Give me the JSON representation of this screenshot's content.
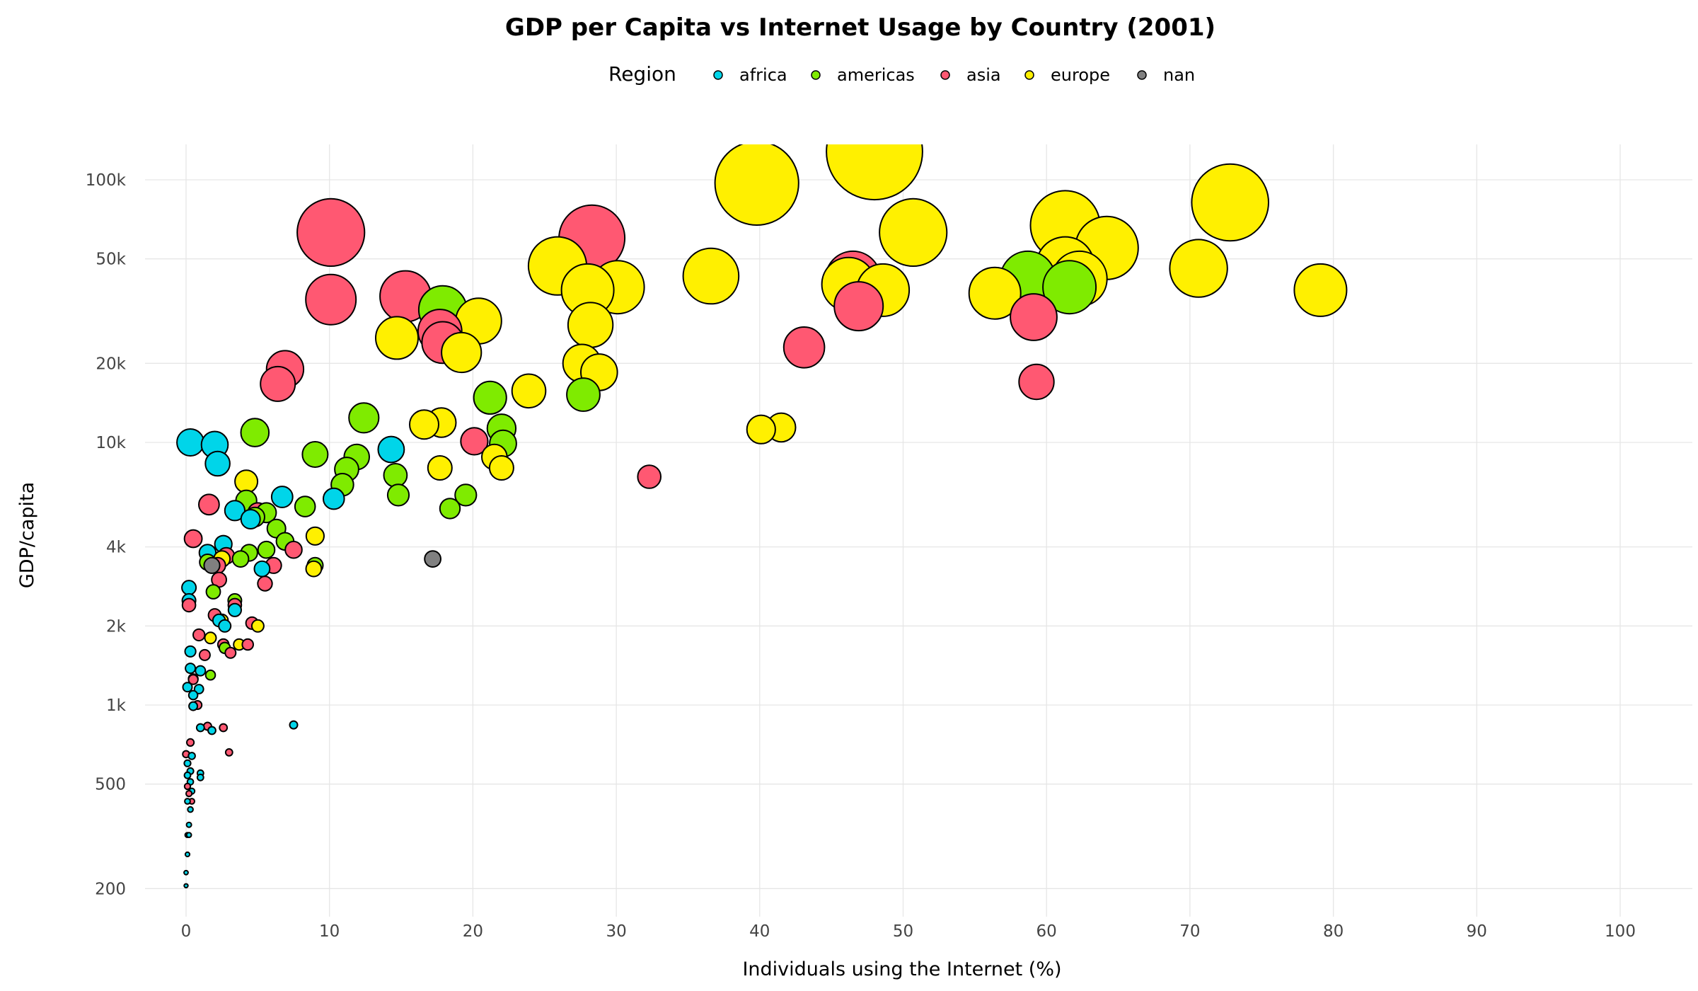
{
  "chart_data": {
    "type": "scatter",
    "title": "GDP per Capita vs Internet Usage by Country (2001)",
    "xlabel": "Individuals using the Internet (%)",
    "ylabel": "GDP/capita",
    "xlim": [
      -3,
      105
    ],
    "ylim": [
      170,
      130000
    ],
    "y_scale": "log",
    "grid": true,
    "x_ticks": [
      0,
      10,
      20,
      30,
      40,
      50,
      60,
      70,
      80,
      90,
      100
    ],
    "x_tick_labels": [
      "0",
      "10",
      "20",
      "30",
      "40",
      "50",
      "60",
      "70",
      "80",
      "90",
      "100"
    ],
    "y_ticks": [
      200,
      500,
      1000,
      2000,
      4000,
      10000,
      20000,
      50000,
      100000
    ],
    "y_tick_labels": [
      "200",
      "500",
      "1k",
      "2k",
      "4k",
      "10k",
      "20k",
      "50k",
      "100k"
    ],
    "legend": {
      "title": "Region",
      "placement": "top-center",
      "entries": [
        {
          "name": "africa",
          "color": "#00d5e9"
        },
        {
          "name": "americas",
          "color": "#7feb00"
        },
        {
          "name": "asia",
          "color": "#ff5872"
        },
        {
          "name": "europe",
          "color": "#fff000"
        },
        {
          "name": "nan",
          "color": "#808080"
        }
      ]
    },
    "size_note": "point area scales with GDP per capita",
    "series": [
      {
        "name": "europe",
        "color": "#fff000",
        "points": [
          [
            48,
            128000
          ],
          [
            39.8,
            97000
          ],
          [
            72.8,
            82000
          ],
          [
            50.7,
            63000
          ],
          [
            61.3,
            67000
          ],
          [
            64.2,
            55000
          ],
          [
            61.3,
            47000
          ],
          [
            62.3,
            42000
          ],
          [
            70.6,
            46000
          ],
          [
            79.1,
            38000
          ],
          [
            56.4,
            37000
          ],
          [
            48.6,
            38000
          ],
          [
            46.2,
            40000
          ],
          [
            36.6,
            43000
          ],
          [
            25.9,
            47000
          ],
          [
            28,
            38000
          ],
          [
            30.1,
            39000
          ],
          [
            28.2,
            28000
          ],
          [
            20.4,
            29000
          ],
          [
            19.2,
            22000
          ],
          [
            14.7,
            25000
          ],
          [
            27.6,
            20000
          ],
          [
            28.8,
            18500
          ],
          [
            23.9,
            15700
          ],
          [
            16.6,
            11700
          ],
          [
            17.8,
            11900
          ],
          [
            40.1,
            11200
          ],
          [
            41.5,
            11400
          ],
          [
            21.5,
            8800
          ],
          [
            17.7,
            8000
          ],
          [
            22,
            8000
          ],
          [
            4.2,
            7100
          ],
          [
            9,
            4400
          ],
          [
            8.9,
            3300
          ],
          [
            5,
            2000
          ],
          [
            2.5,
            3600
          ],
          [
            3.7,
            1700
          ],
          [
            1.7,
            1800
          ],
          [
            2.5,
            2100
          ]
        ]
      },
      {
        "name": "asia",
        "color": "#ff5872",
        "points": [
          [
            10.1,
            63000
          ],
          [
            28.3,
            60000
          ],
          [
            10.1,
            35000
          ],
          [
            15.3,
            36000
          ],
          [
            17.9,
            24000
          ],
          [
            17.7,
            26500
          ],
          [
            46.9,
            33000
          ],
          [
            46.5,
            42000
          ],
          [
            59.1,
            30000
          ],
          [
            43.1,
            23000
          ],
          [
            59.3,
            17000
          ],
          [
            6.9,
            19000
          ],
          [
            6.4,
            16700
          ],
          [
            20.1,
            10100
          ],
          [
            32.3,
            7400
          ],
          [
            1.6,
            5800
          ],
          [
            5,
            5400
          ],
          [
            0.5,
            4300
          ],
          [
            7.5,
            3900
          ],
          [
            6.1,
            3400
          ],
          [
            2.2,
            3400
          ],
          [
            2.8,
            3700
          ],
          [
            3.4,
            2400
          ],
          [
            5.5,
            2900
          ],
          [
            2.3,
            3000
          ],
          [
            4.6,
            2050
          ],
          [
            2,
            2200
          ],
          [
            0.9,
            1850
          ],
          [
            4.3,
            1700
          ],
          [
            2.6,
            1700
          ],
          [
            1.3,
            1550
          ],
          [
            3.1,
            1580
          ],
          [
            0.5,
            1250
          ],
          [
            0.8,
            1000
          ],
          [
            1.5,
            830
          ],
          [
            2.6,
            820
          ],
          [
            3,
            660
          ],
          [
            0.3,
            720
          ],
          [
            0,
            650
          ],
          [
            0.2,
            460
          ],
          [
            0.1,
            490
          ],
          [
            0.4,
            430
          ],
          [
            0.2,
            2400
          ]
        ]
      },
      {
        "name": "americas",
        "color": "#7feb00",
        "points": [
          [
            17.9,
            32000
          ],
          [
            58.7,
            42000
          ],
          [
            61.6,
            39000
          ],
          [
            21.2,
            14800
          ],
          [
            27.7,
            15200
          ],
          [
            12.4,
            12400
          ],
          [
            22,
            11300
          ],
          [
            22.1,
            9900
          ],
          [
            4.8,
            10900
          ],
          [
            9,
            9000
          ],
          [
            11.9,
            8800
          ],
          [
            11.2,
            7900
          ],
          [
            14.6,
            7500
          ],
          [
            10.9,
            6900
          ],
          [
            14.8,
            6300
          ],
          [
            19.5,
            6300
          ],
          [
            18.4,
            5600
          ],
          [
            8.3,
            5700
          ],
          [
            4.2,
            6000
          ],
          [
            4.8,
            5200
          ],
          [
            5.6,
            5400
          ],
          [
            6.3,
            4700
          ],
          [
            6.9,
            4200
          ],
          [
            5.6,
            3900
          ],
          [
            4.4,
            3800
          ],
          [
            9,
            3400
          ],
          [
            3.8,
            3600
          ],
          [
            1.5,
            3500
          ],
          [
            1.9,
            2700
          ],
          [
            3.4,
            2500
          ],
          [
            2.7,
            1650
          ],
          [
            1.7,
            1300
          ]
        ]
      },
      {
        "name": "africa",
        "color": "#00d5e9",
        "points": [
          [
            0.3,
            10000
          ],
          [
            2,
            9800
          ],
          [
            2.2,
            8300
          ],
          [
            14.3,
            9400
          ],
          [
            10.3,
            6100
          ],
          [
            6.7,
            6200
          ],
          [
            3.4,
            5500
          ],
          [
            4.5,
            5100
          ],
          [
            2.6,
            4100
          ],
          [
            1.5,
            3800
          ],
          [
            5.3,
            3300
          ],
          [
            0.2,
            2800
          ],
          [
            0.2,
            2500
          ],
          [
            2.7,
            2000
          ],
          [
            3.4,
            2300
          ],
          [
            2.3,
            2100
          ],
          [
            0.3,
            1600
          ],
          [
            0.3,
            1380
          ],
          [
            1,
            1350
          ],
          [
            0.5,
            1260
          ],
          [
            0.1,
            1170
          ],
          [
            0.9,
            1150
          ],
          [
            0.5,
            1090
          ],
          [
            0.5,
            990
          ],
          [
            7.5,
            840
          ],
          [
            1,
            820
          ],
          [
            1.8,
            800
          ],
          [
            0.4,
            640
          ],
          [
            0.1,
            600
          ],
          [
            0.3,
            560
          ],
          [
            1,
            550
          ],
          [
            0.1,
            540
          ],
          [
            1,
            530
          ],
          [
            0.3,
            510
          ],
          [
            0.4,
            470
          ],
          [
            0.1,
            430
          ],
          [
            0.3,
            400
          ],
          [
            0.2,
            350
          ],
          [
            0.1,
            320
          ],
          [
            0.2,
            320
          ],
          [
            0.1,
            270
          ],
          [
            0,
            230
          ],
          [
            0,
            205
          ]
        ]
      },
      {
        "name": "nan",
        "color": "#808080",
        "points": [
          [
            17.2,
            3600
          ],
          [
            1.8,
            3400
          ]
        ]
      }
    ]
  }
}
